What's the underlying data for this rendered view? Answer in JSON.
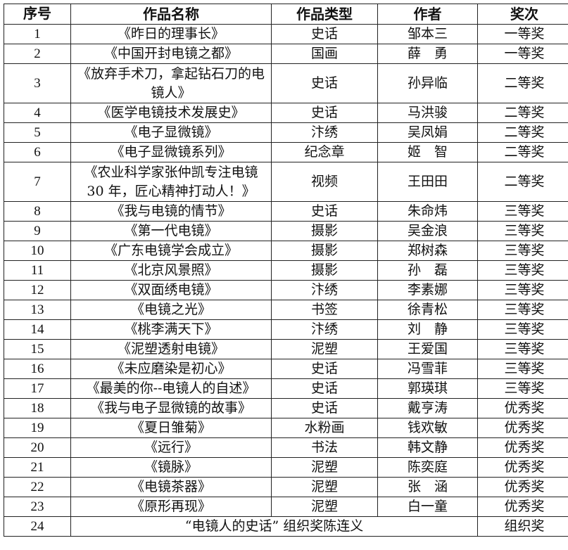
{
  "table": {
    "headers": [
      "序号",
      "作品名称",
      "作品类型",
      "作者",
      "奖次"
    ],
    "rows": [
      {
        "no": "1",
        "title": "《昨日的理事长》",
        "type": "史话",
        "author": "邹本三",
        "award": "一等奖"
      },
      {
        "no": "2",
        "title": "《中国开封电镜之都》",
        "type": "国画",
        "author": "薛　勇",
        "award": "一等奖"
      },
      {
        "no": "3",
        "title": "《放弃手术刀，拿起钻石刀的电镜人》",
        "type": "史话",
        "author": "孙异临",
        "award": "二等奖",
        "tall": true
      },
      {
        "no": "4",
        "title": "《医学电镜技术发展史》",
        "type": "史话",
        "author": "马洪骏",
        "award": "二等奖"
      },
      {
        "no": "5",
        "title": "《电子显微镜》",
        "type": "汴绣",
        "author": "吴凤娟",
        "award": "二等奖"
      },
      {
        "no": "6",
        "title": "《电子显微镜系列》",
        "type": "纪念章",
        "author": "姬　智",
        "award": "二等奖"
      },
      {
        "no": "7",
        "title": "《农业科学家张仲凯专注电镜 30 年，匠心精神打动人！》",
        "type": "视频",
        "author": "王田田",
        "award": "二等奖",
        "tall": true
      },
      {
        "no": "8",
        "title": "《我与电镜的情节》",
        "type": "史话",
        "author": "朱命炜",
        "award": "三等奖"
      },
      {
        "no": "9",
        "title": "《第一代电镜》",
        "type": "摄影",
        "author": "吴金浪",
        "award": "三等奖"
      },
      {
        "no": "10",
        "title": "《广东电镜学会成立》",
        "type": "摄影",
        "author": "郑树森",
        "award": "三等奖"
      },
      {
        "no": "11",
        "title": "《北京风景照》",
        "type": "摄影",
        "author": "孙　磊",
        "award": "三等奖"
      },
      {
        "no": "12",
        "title": "《双面绣电镜》",
        "type": "汴绣",
        "author": "李素娜",
        "award": "三等奖"
      },
      {
        "no": "13",
        "title": "《电镜之光》",
        "type": "书签",
        "author": "徐青松",
        "award": "三等奖"
      },
      {
        "no": "14",
        "title": "《桃李满天下》",
        "type": "汴绣",
        "author": "刘　静",
        "award": "三等奖"
      },
      {
        "no": "15",
        "title": "《泥塑透射电镜》",
        "type": "泥塑",
        "author": "王爱国",
        "award": "三等奖"
      },
      {
        "no": "16",
        "title": "《未应磨染是初心》",
        "type": "史话",
        "author": "冯雪菲",
        "award": "三等奖"
      },
      {
        "no": "17",
        "title": "《最美的你--电镜人的自述》",
        "type": "史话",
        "author": "郭瑛琪",
        "award": "三等奖"
      },
      {
        "no": "18",
        "title": "《我与电子显微镜的故事》",
        "type": "史话",
        "author": "戴亨涛",
        "award": "优秀奖"
      },
      {
        "no": "19",
        "title": "《夏日雏菊》",
        "type": "水粉画",
        "author": "钱欢敏",
        "award": "优秀奖"
      },
      {
        "no": "20",
        "title": "《远行》",
        "type": "书法",
        "author": "韩文静",
        "award": "优秀奖"
      },
      {
        "no": "21",
        "title": "《镜脉》",
        "type": "泥塑",
        "author": "陈奕庭",
        "award": "优秀奖"
      },
      {
        "no": "22",
        "title": "《电镜茶器》",
        "type": "泥塑",
        "author": "张　涵",
        "award": "优秀奖"
      },
      {
        "no": "23",
        "title": "《原形再现》",
        "type": "泥塑",
        "author": "白一童",
        "award": "优秀奖"
      }
    ],
    "last_row": {
      "no": "24",
      "merged": "“电镜人的史话” 组织奖陈连义",
      "award": "组织奖"
    }
  }
}
